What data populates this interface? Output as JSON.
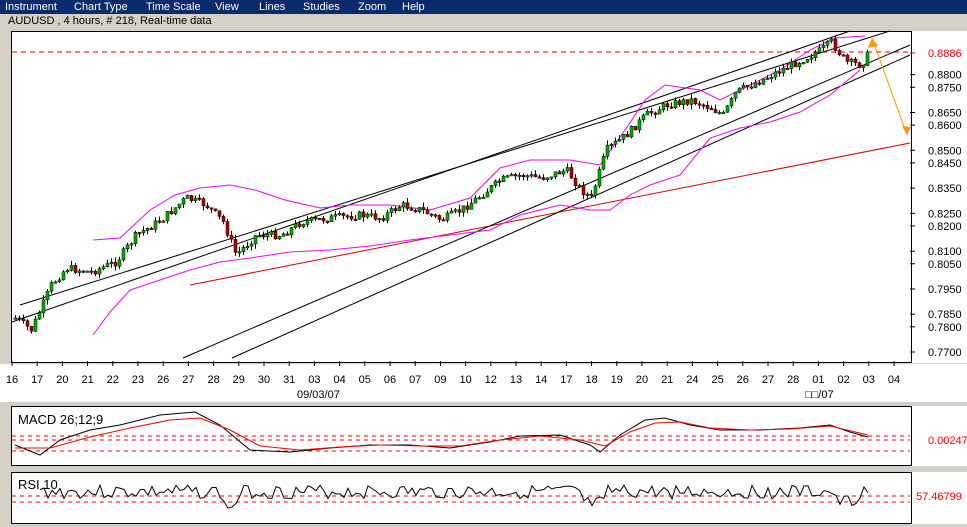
{
  "menu": {
    "items": [
      "Instrument",
      "Chart Type",
      "Time Scale",
      "View",
      "Lines",
      "Studies",
      "Zoom",
      "Help"
    ]
  },
  "title": "AUDUSD , 4 hours, # 218, Real-time data",
  "chart_data": {
    "type": "candlestick",
    "price_axis": {
      "ticks": [
        "0.8886",
        "0.8800",
        "0.8750",
        "0.8650",
        "0.8600",
        "0.8500",
        "0.8450",
        "0.8350",
        "0.8250",
        "0.8200",
        "0.8100",
        "0.8050",
        "0.7950",
        "0.7850",
        "0.7800",
        "0.7700"
      ],
      "current_price": "0.8886",
      "ylim": [
        0.765,
        0.9
      ]
    },
    "date_axis": {
      "days": [
        "16",
        "17",
        "20",
        "21",
        "22",
        "23",
        "26",
        "27",
        "28",
        "29",
        "30",
        "31",
        "03",
        "04",
        "05",
        "06",
        "07",
        "09",
        "10",
        "12",
        "13",
        "14",
        "17",
        "18",
        "19",
        "20",
        "21",
        "24",
        "25",
        "26",
        "27",
        "28",
        "01",
        "02",
        "03",
        "04"
      ],
      "month_labels": [
        "09/03/07",
        "□□/07"
      ]
    },
    "macd": {
      "label": "MACD 26;12;9",
      "value": "0.00247"
    },
    "rsi": {
      "label": "RSI 10",
      "value": "57.46799"
    }
  },
  "colors": {
    "menu_bg": "#0a2a6e",
    "bull": "#00b000",
    "bear": "#b00000",
    "bollinger": "#ff00ff",
    "trendline": "#000000",
    "red_trendline": "#dd0000",
    "arrow": "#ff9900"
  }
}
